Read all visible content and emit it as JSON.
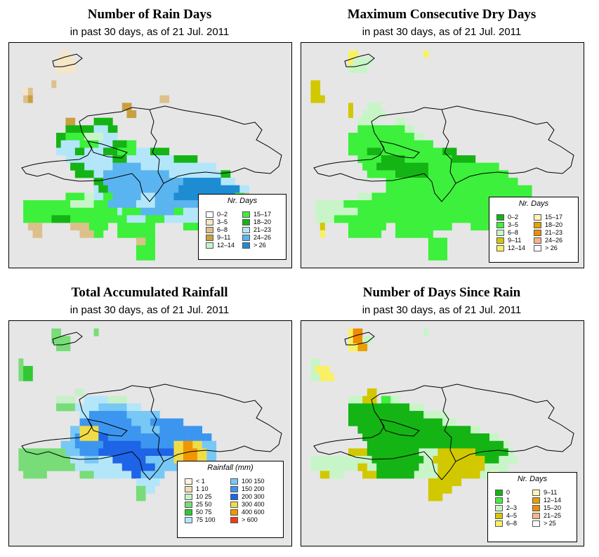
{
  "panels": [
    {
      "id": "rain-days",
      "title": "Number of Rain Days",
      "subtitle": "in past 30 days, as of  21 Jul. 2011",
      "legend": {
        "title": "Nr. Days",
        "items": [
          {
            "label": "0–2",
            "color": "#ffffff"
          },
          {
            "label": "3–5",
            "color": "#f5e6c8"
          },
          {
            "label": "6–8",
            "color": "#dcc08c"
          },
          {
            "label": "9–11",
            "color": "#c8a040"
          },
          {
            "label": "12–14",
            "color": "#c8f5c8"
          },
          {
            "label": "15–17",
            "color": "#3cf03c"
          },
          {
            "label": "18–20",
            "color": "#14b414"
          },
          {
            "label": "21–23",
            "color": "#b4e6fa"
          },
          {
            "label": "24–26",
            "color": "#5ab4f0"
          },
          {
            "label": "> 26",
            "color": "#1e8cd2"
          }
        ]
      },
      "grid_codes": [
        "............................................................",
        "...........bb...............................................",
        "..........bbbb..............................................",
        "..........bbbb..............................................",
        "............................................................",
        ".........c..................................................",
        "...bc.......................................................",
        "...cd...........................cc..........................",
        "........................dd..................................",
        ".........................dd.................................",
        "............dd....gggg......................................",
        "............gggggghhhgg.....................................",
        "..........ggffffeeeehhh.....................................",
        "..........ghhhhffffhhhgggff.................................",
        "..........hhhhgghhhhgggffffhhhgggg..........................",
        "............hhhhhhhhhhggghhhhhhhhhhggggg....................",
        ".............ggghhhhhhiiiiiihhhhhhhhhhhhhhhh................",
        "..............gggghhiiiiiiiiiiiiiihhhhhhhhhhhgg.............",
        "..................ggiiiiiiiiiiiiiiiiijjjjjjjjhhh............",
        "..................hggiiiiiiiiiiiiiiijjjjjjjjjjjjjhh.........",
        "............ffffeehhffiiiiiihhhiiiijjjjjjjjjjjjjffc.........",
        "...ffffffffffeeeeefffiiiiiihhhhiiiiiiiiiiiiigggffdd.........",
        "...ffffffffffffffffffffhffffiiiiiiiffhhhhhggggfffff.........",
        "...ffffffggggffffffffffffhhhhffffhhhhhhhhhhfffffff..........",
        "....ccc......ccccffff..ffffffff......ffffff.................",
        ".....cc........cccff...ffffffff.............................",
        "...........................ccff.............................",
        "...........................ffff.............................",
        "...........................ffff.............................",
        "............................................................"
      ]
    },
    {
      "id": "dry-days",
      "title": "Maximum Consecutive Dry Days",
      "subtitle": "in past 30 days, as of  21 Jul. 2011",
      "legend": {
        "title": "Nr. Days",
        "items": [
          {
            "label": "0–2",
            "color": "#14b414"
          },
          {
            "label": "3–5",
            "color": "#3cf03c"
          },
          {
            "label": "6–8",
            "color": "#c8f5c8"
          },
          {
            "label": "9–11",
            "color": "#d2c800"
          },
          {
            "label": "12–14",
            "color": "#faf064"
          },
          {
            "label": "15–17",
            "color": "#fff5b4"
          },
          {
            "label": "18–20",
            "color": "#e6a000"
          },
          {
            "label": "21–23",
            "color": "#f08c00"
          },
          {
            "label": "24–26",
            "color": "#f5b48c"
          },
          {
            "label": "> 26",
            "color": "#ffffff"
          }
        ]
      },
      "grid_codes": [
        "............................................................",
        "..........ee..............e.................................",
        "..........ecccc.............................................",
        "..........cccc..............................................",
        "............................................................",
        "..dd........................................................",
        "..dd........................................................",
        "..ddd.......................................................",
        "..........d...ccc...........................................",
        "..........d..ccccc..........................................",
        "............cccc....cc......................................",
        "............bbbbbbbbbbcc....................................",
        "..........bbbbbbbbbbbbbbcc..................................",
        "..........bbbbbbbbbbbbbbbbbb................................",
        "..........bbbbaaabbbbbbbbbbbbbaaa...........................",
        "............bbbbbaaaaabbbbbbbbbbaaaaa.......................",
        ".............bbbaaaaaaaaaaabbbbbbbbbbbbbbb..................",
        "..............bbbbbbaaaaaaabbbbbbbbbbbbbbbbb................",
        "..................bbbbbbbbbbbbbbbbbbbbbbbbbbbb..............",
        "..................bbbbbbbbbbbbbbbbbbbbbbbbbbbbbbb...........",
        "............cccbbbbbbbbbbbbbbbbbbbbbbbbbbbbbbbbbb...........",
        "...ccccccbbbbbbbbbbbbbbbbbbbbbbbbbbbbbbbbbbbbbbbb...........",
        "...cccccccccbbbbbbbbbbbbbbbbbbbbbbbbbbbbbbbbbbbbc...........",
        "...ccccbbbbbbbbbbbbbbbbbbbbbbbbbbbbbbbbbbbbbbbbb............",
        "....d.....bbbbbbbb..bbbbbbbbbbbb....bbbbbb..................",
        "....e.....bbbbbbb...bbbbbbbb................................",
        "...........................bbbb.............................",
        "...........................bbbb.............................",
        "...........................bbbb.............................",
        "............................................................"
      ]
    },
    {
      "id": "rainfall",
      "title": "Total Accumulated Rainfall",
      "subtitle": "in past 30 days, as of  21 Jul. 2011",
      "legend": {
        "title": "Rainfall (mm)",
        "items": [
          {
            "label": "< 1",
            "color": "#fff5dc"
          },
          {
            "label": "1  10",
            "color": "#f0dcb4"
          },
          {
            "label": "10  25",
            "color": "#c8f0c8"
          },
          {
            "label": "25  50",
            "color": "#78dc78"
          },
          {
            "label": "50  75",
            "color": "#32c832"
          },
          {
            "label": "75  100",
            "color": "#b4e6fa"
          },
          {
            "label": "100  150",
            "color": "#78c8f5"
          },
          {
            "label": "150  200",
            "color": "#3c96f0"
          },
          {
            "label": "200  300",
            "color": "#1e64e6"
          },
          {
            "label": "300  400",
            "color": "#f0dc46"
          },
          {
            "label": "400  600",
            "color": "#f09600"
          },
          {
            "label": "> 600",
            "color": "#f03c14"
          }
        ]
      },
      "grid_codes": [
        "............................................................",
        ".........dd.......d.........................................",
        ".........dddd...............................................",
        "..........ddd...............................................",
        "............................................................",
        "..d.........................................................",
        "..dee.......................................................",
        "..dee.......................................................",
        "........................................................... ",
        "..............cc............................................",
        "..........cccc..fffffcccc...................................",
        "..........ddddfffffggggggfff................................",
        "...............ffhhhhhhhhggggggg............................",
        "...............hhhhhhhhhhhgggghhhhhhh.......................",
        ".............ggjjjjhhhhhhhhhgggghhhhhhhhh...................",
        ".............ghjjjjiihhhhhhhhhhhhhhhhhhhhhh.................",
        "...........ggghhhhhhiiiiiiiihhhhhhhjjkkjjggg................",
        "..ddddddddddggghhhhiiiiiiiiiiiiiiiijjkkkjjgg................",
        "..dddddddddddfffgggfffiiiiiiiggggggjjkkkjjgg................",
        "..ddddddddddddffffffffffiiiiiiigggggggggggggg...............",
        "...ddddd.......dddffffffffiiggggg...........................",
        "...........................fffff.............................",
        "...........................ddff.............................",
        "...........................dd...............................",
        "............................................................",
        "............................................................",
        "............................................................",
        "............................................................",
        "............................................................",
        "............................................................"
      ]
    },
    {
      "id": "since-rain",
      "title": "Number of Days Since Rain",
      "subtitle": "in past 30 days, as of  21 Jul. 2011",
      "legend": {
        "title": "Nr. Days",
        "items": [
          {
            "label": "0",
            "color": "#14b414"
          },
          {
            "label": "1",
            "color": "#3cf03c"
          },
          {
            "label": "2–3",
            "color": "#c8f5c8"
          },
          {
            "label": "4–5",
            "color": "#d2c800"
          },
          {
            "label": "6–8",
            "color": "#faf064"
          },
          {
            "label": "9–11",
            "color": "#fff5b4"
          },
          {
            "label": "12–14",
            "color": "#e6a000"
          },
          {
            "label": "15–20",
            "color": "#f08c00"
          },
          {
            "label": "21–25",
            "color": "#f5b48c"
          },
          {
            "label": "> 25",
            "color": "#ffffff"
          }
        ]
      },
      "grid_codes": [
        "............................................................",
        "..........ehh.............c.................................",
        "..........ehhcc.............................................",
        "..........eegg..............................................",
        "............................................................",
        "..cc........................................................",
        "..ceee......................................................",
        "..cceee.....................................................",
        "................................................................",
        "..............dd............................................",
        "..........cccddd.bbcc.......................................",
        "..........aaaaaaaaaaaaaccc..................................",
        "..........aaaaaaaaaaaaaaaaccccc.............................",
        "..........aaaaaaaaaaaaaaaaaaaaccc...........................",
        "............aaaaaaaaaaaaaaaaaaaaaaaacc......................",
        ".............aaaaaaaaaaaaaaaaaaaaaaaaaaacc..................",
        "..............aaaaaaaaaaaaaaaaaaaaaaaaaaaaac.................",
        "..........ddddaaaaaaaaaaaccccddddddddaaaaaaac................",
        "..cccccccccccccaaaaaaaaaaaccdddddddddddaaacccc...............",
        "..ccccccccccddccaaaaaaaaaccccddddddddddccccc.................",
        "....ddccc....dddaaaaaaaacccccdddddddddccffcc.................",
        "...........................ddddddd..............................",
        "...........................ddddd.............................",
        "...........................ddd...............................",
        "............................................................",
        "............................................................",
        "............................................................",
        "............................................................",
        "............................................................",
        "............................................................"
      ]
    }
  ]
}
